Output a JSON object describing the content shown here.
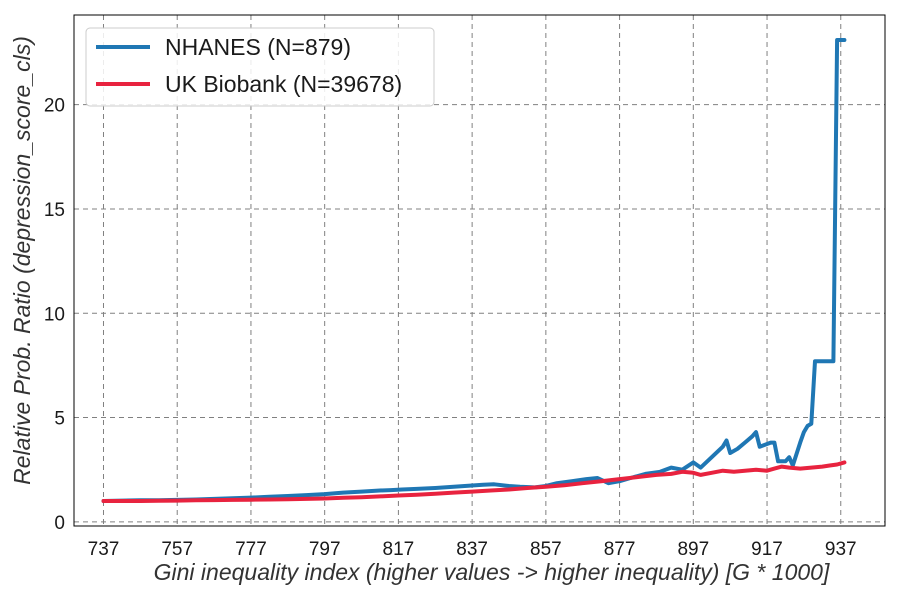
{
  "chart_data": {
    "type": "line",
    "xlabel": "Gini inequality index (higher values -> higher inequality) [G * 1000]",
    "ylabel": "Relative Prob. Ratio (depression_score_cls)",
    "xlim": [
      729,
      949
    ],
    "ylim": [
      -0.2,
      24.3
    ],
    "xticks": [
      "737",
      "757",
      "777",
      "797",
      "817",
      "837",
      "857",
      "877",
      "897",
      "917",
      "937"
    ],
    "yticks": [
      "0",
      "5",
      "10",
      "15",
      "20"
    ],
    "grid": true,
    "legend_position": "top-left",
    "series": [
      {
        "name": "NHANES (N=879)",
        "color": "#1f77b4",
        "x": [
          737,
          742,
          747,
          752,
          757,
          762,
          767,
          772,
          777,
          782,
          787,
          792,
          797,
          802,
          807,
          812,
          815,
          818,
          822,
          827,
          832,
          837,
          840,
          843,
          847,
          850,
          854,
          857,
          860,
          864,
          868,
          871,
          874,
          877,
          880,
          884,
          888,
          891,
          894,
          897,
          899,
          902,
          905,
          906,
          907,
          909,
          911,
          913,
          914,
          915,
          918,
          919,
          920,
          922,
          923,
          924,
          926,
          927,
          928,
          929,
          930,
          931,
          932,
          933,
          934,
          935,
          936,
          937,
          938
        ],
        "y": [
          1.0,
          1.02,
          1.03,
          1.03,
          1.05,
          1.07,
          1.1,
          1.13,
          1.16,
          1.2,
          1.24,
          1.28,
          1.33,
          1.4,
          1.45,
          1.5,
          1.52,
          1.55,
          1.58,
          1.62,
          1.68,
          1.74,
          1.78,
          1.8,
          1.72,
          1.68,
          1.65,
          1.72,
          1.85,
          1.95,
          2.05,
          2.1,
          1.85,
          1.95,
          2.1,
          2.3,
          2.4,
          2.6,
          2.5,
          2.85,
          2.6,
          3.1,
          3.6,
          3.9,
          3.3,
          3.5,
          3.8,
          4.1,
          4.3,
          3.6,
          3.8,
          3.8,
          2.9,
          2.9,
          3.1,
          2.7,
          3.8,
          4.3,
          4.6,
          4.7,
          7.7,
          7.7,
          7.7,
          7.7,
          7.7,
          7.7,
          23.1,
          23.1,
          23.1
        ]
      },
      {
        "name": "UK Biobank (N=39678)",
        "color": "#e8233f",
        "x": [
          737,
          742,
          747,
          752,
          757,
          762,
          767,
          772,
          777,
          782,
          787,
          792,
          797,
          802,
          807,
          812,
          817,
          822,
          827,
          832,
          837,
          842,
          847,
          852,
          857,
          862,
          867,
          872,
          877,
          882,
          887,
          891,
          894,
          897,
          899,
          902,
          905,
          908,
          911,
          914,
          917,
          919,
          921,
          923,
          926,
          929,
          932,
          934,
          936,
          938
        ],
        "y": [
          1.0,
          1.0,
          1.0,
          1.01,
          1.02,
          1.03,
          1.04,
          1.05,
          1.06,
          1.07,
          1.08,
          1.1,
          1.12,
          1.15,
          1.18,
          1.22,
          1.26,
          1.3,
          1.35,
          1.4,
          1.45,
          1.5,
          1.55,
          1.62,
          1.68,
          1.75,
          1.85,
          1.95,
          2.05,
          2.15,
          2.25,
          2.3,
          2.4,
          2.35,
          2.25,
          2.35,
          2.45,
          2.4,
          2.45,
          2.5,
          2.45,
          2.55,
          2.65,
          2.6,
          2.55,
          2.6,
          2.65,
          2.7,
          2.75,
          2.85
        ]
      }
    ]
  }
}
